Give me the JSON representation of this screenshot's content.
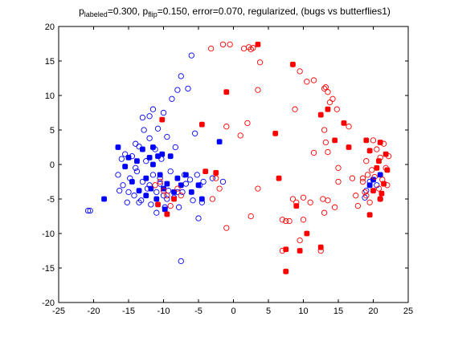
{
  "chart_data": {
    "type": "scatter",
    "title": {
      "p1": "p",
      "p1_sub": "labeled",
      "p1_val": "=0.300, p",
      "p2_sub": "flip",
      "rest": "=0.150, error=0.070, regularized, (bugs vs butterflies1)"
    },
    "xlim": [
      -25,
      25
    ],
    "ylim": [
      -20,
      20
    ],
    "xticks": [
      -25,
      -20,
      -15,
      -10,
      -5,
      0,
      5,
      10,
      15,
      20,
      25
    ],
    "yticks": [
      -20,
      -15,
      -10,
      -5,
      0,
      5,
      10,
      15,
      20
    ],
    "grid": false,
    "colors": {
      "blue": "#0000ff",
      "red": "#ff0000"
    },
    "series": [
      {
        "color": "blue",
        "style": "open-circle",
        "points": [
          [
            -20.5,
            -6.7
          ],
          [
            -20.8,
            -6.7
          ],
          [
            -16.5,
            -1.5
          ],
          [
            -16.3,
            -3.8
          ],
          [
            -16.0,
            0.8
          ],
          [
            -15.8,
            -3.0
          ],
          [
            -15.5,
            1.5
          ],
          [
            -15.2,
            -5.5
          ],
          [
            -14.8,
            -2.0
          ],
          [
            -14.5,
            1.2
          ],
          [
            -14.2,
            -4.5
          ],
          [
            -14.0,
            3.0
          ],
          [
            -13.8,
            -1.0
          ],
          [
            -13.5,
            2.6
          ],
          [
            -13.2,
            -5.2
          ],
          [
            -13.0,
            -2.5
          ],
          [
            -12.8,
            5.0
          ],
          [
            -12.5,
            0.5
          ],
          [
            -12.3,
            -3.5
          ],
          [
            -12.0,
            3.8
          ],
          [
            -11.8,
            -5.8
          ],
          [
            -11.5,
            -1.5
          ],
          [
            -11.2,
            2.2
          ],
          [
            -11.0,
            -4.0
          ],
          [
            -10.8,
            5.2
          ],
          [
            -10.5,
            -2.8
          ],
          [
            -10.3,
            0.8
          ],
          [
            -10.0,
            -4.5
          ],
          [
            -9.8,
            -6.2
          ],
          [
            -9.5,
            4.0
          ],
          [
            -9.3,
            -3.8
          ],
          [
            -9.0,
            -1.0
          ],
          [
            -8.8,
            9.5
          ],
          [
            -8.5,
            -4.8
          ],
          [
            -8.3,
            2.5
          ],
          [
            -8.0,
            10.8
          ],
          [
            -7.8,
            -6.2
          ],
          [
            -7.5,
            12.8
          ],
          [
            -7.3,
            -4.0
          ],
          [
            -7.0,
            -1.5
          ],
          [
            -6.8,
            -2.8
          ],
          [
            -6.5,
            11.0
          ],
          [
            -6.2,
            -2.2
          ],
          [
            -6.0,
            15.8
          ],
          [
            -5.8,
            -5.2
          ],
          [
            -5.5,
            4.5
          ],
          [
            -5.2,
            -1.5
          ],
          [
            -5.0,
            -7.8
          ],
          [
            -4.8,
            -3.0
          ],
          [
            -4.5,
            -5.5
          ],
          [
            -4.3,
            -2.5
          ],
          [
            -7.5,
            -14.0
          ],
          [
            -3.0,
            -2.0
          ],
          [
            -1.5,
            -2.5
          ],
          [
            -11.5,
            8.0
          ],
          [
            -12.0,
            7.0
          ],
          [
            -10.0,
            7.5
          ],
          [
            -13.0,
            6.8
          ],
          [
            -11.0,
            -7.0
          ],
          [
            -14.0,
            -0.5
          ],
          [
            -15.0,
            -4.0
          ],
          [
            -12.0,
            -3.0
          ],
          [
            -9.5,
            -5.0
          ],
          [
            -8.0,
            -4.0
          ],
          [
            -10.5,
            -2.0
          ],
          [
            -13.5,
            -5.5
          ],
          [
            19.0,
            -3.8
          ],
          [
            19.5,
            -2.5
          ],
          [
            20.5,
            -3.0
          ],
          [
            21.0,
            -5.0
          ],
          [
            18.8,
            -4.8
          ]
        ]
      },
      {
        "color": "blue",
        "style": "filled",
        "points": [
          [
            -18.5,
            -5.0
          ],
          [
            -16.5,
            2.5
          ],
          [
            -15.5,
            -0.3
          ],
          [
            -15.0,
            1.0
          ],
          [
            -14.5,
            -2.5
          ],
          [
            -13.8,
            0.5
          ],
          [
            -13.5,
            -3.8
          ],
          [
            -13.0,
            2.2
          ],
          [
            -12.5,
            -2.0
          ],
          [
            -12.0,
            1.0
          ],
          [
            -11.8,
            -3.5
          ],
          [
            -11.5,
            2.5
          ],
          [
            -11.0,
            -5.0
          ],
          [
            -10.8,
            1.2
          ],
          [
            -10.5,
            -1.5
          ],
          [
            -10.2,
            1.5
          ],
          [
            -10.0,
            -3.5
          ],
          [
            -9.8,
            -6.5
          ],
          [
            -9.5,
            -2.8
          ],
          [
            -9.0,
            1.2
          ],
          [
            -8.5,
            -4.0
          ],
          [
            -8.0,
            -2.0
          ],
          [
            -7.5,
            -3.0
          ],
          [
            -6.8,
            -1.5
          ],
          [
            -6.0,
            -4.0
          ],
          [
            -5.0,
            -3.0
          ],
          [
            -4.5,
            -5.0
          ],
          [
            -2.0,
            3.3
          ],
          [
            -11.5,
            0.0
          ],
          [
            -12.5,
            -4.5
          ],
          [
            19.5,
            -3.0
          ],
          [
            20.0,
            -2.2
          ],
          [
            21.0,
            -1.5
          ]
        ]
      },
      {
        "color": "red",
        "style": "open-circle",
        "points": [
          [
            -11.2,
            -3.0
          ],
          [
            -10.5,
            -2.5
          ],
          [
            -10.0,
            -3.8
          ],
          [
            -9.5,
            -4.5
          ],
          [
            -9.0,
            -6.0
          ],
          [
            -8.0,
            -3.5
          ],
          [
            -7.5,
            -4.5
          ],
          [
            -3.0,
            -5.0
          ],
          [
            -2.5,
            -2.0
          ],
          [
            -2.0,
            -3.5
          ],
          [
            -1.0,
            -9.2
          ],
          [
            -3.2,
            16.8
          ],
          [
            -1.5,
            17.4
          ],
          [
            -0.5,
            17.4
          ],
          [
            1.5,
            16.8
          ],
          [
            2.2,
            17.0
          ],
          [
            2.5,
            16.7
          ],
          [
            2.8,
            16.9
          ],
          [
            3.5,
            10.8
          ],
          [
            3.8,
            14.8
          ],
          [
            2.0,
            6.0
          ],
          [
            1.0,
            4.2
          ],
          [
            -1.0,
            5.5
          ],
          [
            2.5,
            -7.5
          ],
          [
            3.5,
            -3.5
          ],
          [
            7.0,
            -8.0
          ],
          [
            7.5,
            -8.2
          ],
          [
            7.0,
            -12.5
          ],
          [
            8.0,
            -8.2
          ],
          [
            8.5,
            -5.0
          ],
          [
            9.0,
            -5.5
          ],
          [
            9.5,
            -11.0
          ],
          [
            10.0,
            -8.0
          ],
          [
            10.0,
            -4.8
          ],
          [
            11.0,
            -5.5
          ],
          [
            12.5,
            -12.5
          ],
          [
            12.8,
            -5.0
          ],
          [
            13.0,
            -7.0
          ],
          [
            13.5,
            -5.2
          ],
          [
            14.5,
            -6.2
          ],
          [
            15.0,
            -2.5
          ],
          [
            8.8,
            8.0
          ],
          [
            9.5,
            13.5
          ],
          [
            10.5,
            12.0
          ],
          [
            11.5,
            12.2
          ],
          [
            11.5,
            1.7
          ],
          [
            13.0,
            11.0
          ],
          [
            13.2,
            11.2
          ],
          [
            13.5,
            10.5
          ],
          [
            13.8,
            9.0
          ],
          [
            14.2,
            9.5
          ],
          [
            14.8,
            8.0
          ],
          [
            13.0,
            5.0
          ],
          [
            13.2,
            3.2
          ],
          [
            13.5,
            1.8
          ],
          [
            15.0,
            -0.5
          ],
          [
            16.5,
            5.5
          ],
          [
            17.0,
            -2.0
          ],
          [
            17.5,
            -4.5
          ],
          [
            17.8,
            -6.0
          ],
          [
            18.5,
            -2.5
          ],
          [
            18.8,
            -4.0
          ],
          [
            19.0,
            0.5
          ],
          [
            19.2,
            -1.5
          ],
          [
            19.5,
            -5.5
          ],
          [
            19.8,
            -0.8
          ],
          [
            20.0,
            3.5
          ],
          [
            20.2,
            -1.8
          ],
          [
            20.5,
            2.2
          ],
          [
            20.8,
            -3.5
          ],
          [
            21.0,
            1.0
          ],
          [
            21.3,
            -2.2
          ],
          [
            21.5,
            3.0
          ],
          [
            21.8,
            -0.5
          ],
          [
            22.0,
            -3.0
          ],
          [
            22.2,
            1.2
          ],
          [
            19.0,
            -4.5
          ],
          [
            18.5,
            -2.0
          ]
        ]
      },
      {
        "color": "red",
        "style": "filled",
        "points": [
          [
            -10.2,
            6.5
          ],
          [
            -9.5,
            -7.2
          ],
          [
            -10.8,
            -5.8
          ],
          [
            -4.5,
            5.8
          ],
          [
            -1.0,
            10.5
          ],
          [
            -2.5,
            -1.2
          ],
          [
            -8.5,
            -5.0
          ],
          [
            -4.0,
            -1.0
          ],
          [
            3.5,
            17.4
          ],
          [
            6.0,
            4.5
          ],
          [
            6.5,
            -2.0
          ],
          [
            7.5,
            -12.3
          ],
          [
            7.5,
            -15.5
          ],
          [
            9.0,
            -6.0
          ],
          [
            8.5,
            14.5
          ],
          [
            9.5,
            -12.5
          ],
          [
            10.5,
            -10.0
          ],
          [
            12.5,
            7.2
          ],
          [
            12.5,
            -12.0
          ],
          [
            14.5,
            3.5
          ],
          [
            15.8,
            6.0
          ],
          [
            16.5,
            2.5
          ],
          [
            19.0,
            3.5
          ],
          [
            19.5,
            -7.3
          ],
          [
            19.5,
            2.0
          ],
          [
            20.5,
            -0.5
          ],
          [
            20.8,
            0.5
          ],
          [
            21.0,
            3.2
          ],
          [
            21.0,
            -5.0
          ],
          [
            21.5,
            -2.8
          ],
          [
            21.8,
            1.5
          ],
          [
            22.0,
            -0.8
          ],
          [
            20.0,
            -3.8
          ],
          [
            21.2,
            -4.2
          ],
          [
            13.5,
            8.0
          ]
        ]
      }
    ]
  }
}
